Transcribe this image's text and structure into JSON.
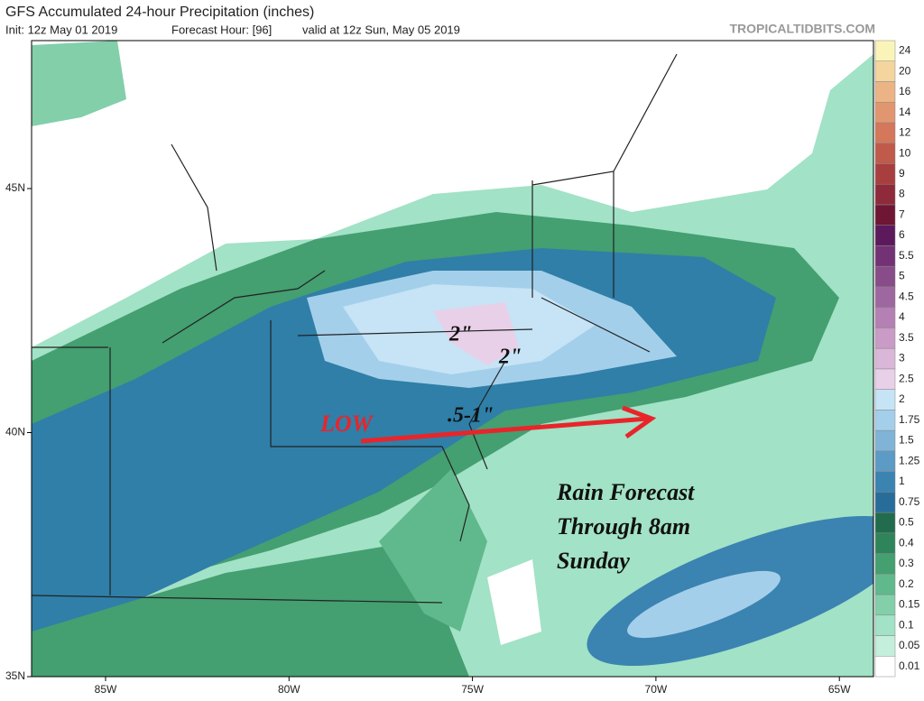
{
  "header": {
    "title": "GFS Accumulated 24-hour Precipitation (inches)",
    "init": "Init: 12z May 01 2019",
    "forecast_hour": "Forecast Hour: [96]",
    "valid": "valid at 12z Sun, May 05 2019",
    "watermark": "TROPICALTIDBITS.COM"
  },
  "axes": {
    "x_labels": [
      "85W",
      "80W",
      "75W",
      "70W",
      "65W"
    ],
    "y_labels": [
      "45N",
      "40N",
      "35N"
    ]
  },
  "legend": {
    "items": [
      {
        "label": "0.01",
        "color": "#ffffff"
      },
      {
        "label": "0.05",
        "color": "#c4efdc"
      },
      {
        "label": "0.1",
        "color": "#a2e2c6"
      },
      {
        "label": "0.15",
        "color": "#82cfaa"
      },
      {
        "label": "0.2",
        "color": "#60b98c"
      },
      {
        "label": "0.3",
        "color": "#449f71"
      },
      {
        "label": "0.4",
        "color": "#2f855b"
      },
      {
        "label": "0.5",
        "color": "#226c4e"
      },
      {
        "label": "0.75",
        "color": "#286d99"
      },
      {
        "label": "1",
        "color": "#3b83b1"
      },
      {
        "label": "1.25",
        "color": "#5b9bc5"
      },
      {
        "label": "1.5",
        "color": "#7fb4d7"
      },
      {
        "label": "1.75",
        "color": "#a4cfea"
      },
      {
        "label": "2",
        "color": "#c6e4f6"
      },
      {
        "label": "2.5",
        "color": "#e8d0e8"
      },
      {
        "label": "3",
        "color": "#dab6d8"
      },
      {
        "label": "3.5",
        "color": "#c99bc6"
      },
      {
        "label": "4",
        "color": "#b580b3"
      },
      {
        "label": "4.5",
        "color": "#9f67a0"
      },
      {
        "label": "5",
        "color": "#884c89"
      },
      {
        "label": "5.5",
        "color": "#733274"
      },
      {
        "label": "6",
        "color": "#5c1a5d"
      },
      {
        "label": "7",
        "color": "#6e1633"
      },
      {
        "label": "8",
        "color": "#8f2a3b"
      },
      {
        "label": "9",
        "color": "#a93e3f"
      },
      {
        "label": "10",
        "color": "#c05a4a"
      },
      {
        "label": "12",
        "color": "#d4775b"
      },
      {
        "label": "14",
        "color": "#e2966f"
      },
      {
        "label": "16",
        "color": "#ecb485"
      },
      {
        "label": "20",
        "color": "#f3d59d"
      },
      {
        "label": "24",
        "color": "#fbf4b8"
      }
    ]
  },
  "annotations": {
    "low": "LOW",
    "range": ".5-1\"",
    "amount_1": "2\"",
    "amount_2": "2\"",
    "forecast_lines": [
      "Rain Forecast",
      "Through 8am",
      "Sunday"
    ]
  }
}
